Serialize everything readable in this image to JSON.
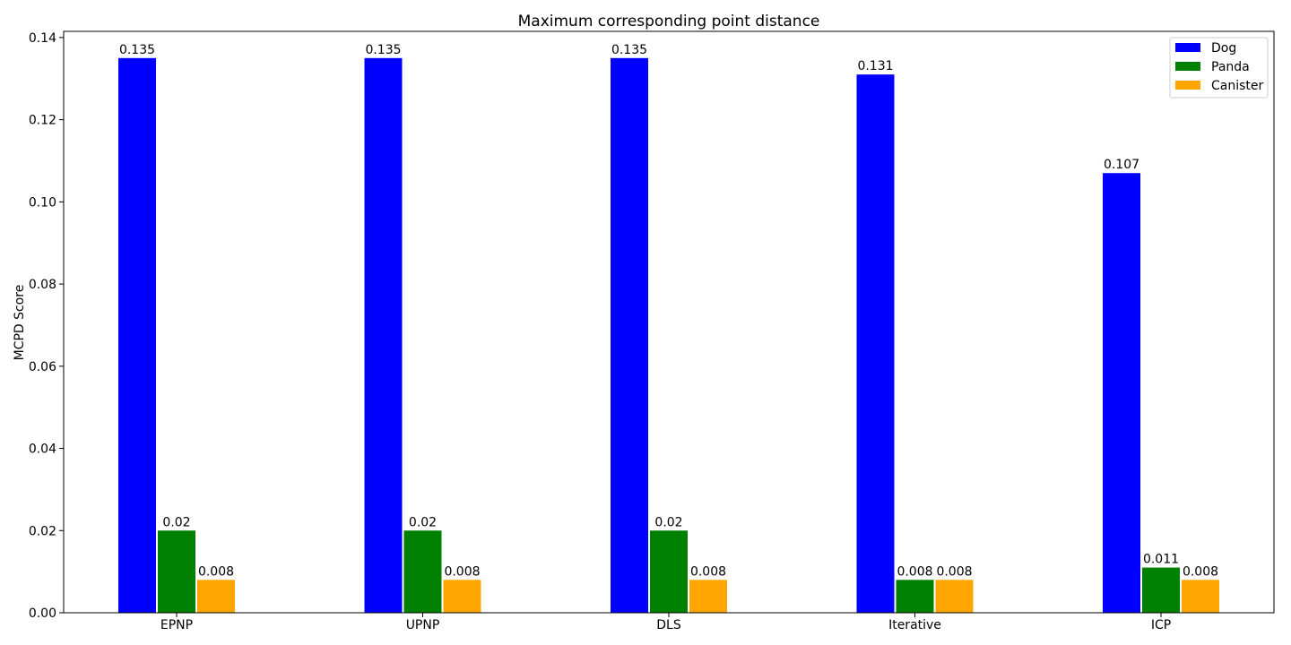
{
  "chart_data": {
    "type": "bar",
    "title": "Maximum corresponding point distance",
    "xlabel": "",
    "ylabel": "MCPD Score",
    "categories": [
      "EPNP",
      "UPNP",
      "DLS",
      "Iterative",
      "ICP"
    ],
    "series": [
      {
        "name": "Dog",
        "color": "#0000ff",
        "values": [
          0.135,
          0.135,
          0.135,
          0.131,
          0.107
        ],
        "labels": [
          "0.135",
          "0.135",
          "0.135",
          "0.131",
          "0.107"
        ]
      },
      {
        "name": "Panda",
        "color": "#008000",
        "values": [
          0.02,
          0.02,
          0.02,
          0.008,
          0.011
        ],
        "labels": [
          "0.02",
          "0.02",
          "0.02",
          "0.008",
          "0.011"
        ]
      },
      {
        "name": "Canister",
        "color": "#ffa500",
        "values": [
          0.008,
          0.008,
          0.008,
          0.008,
          0.008
        ],
        "labels": [
          "0.008",
          "0.008",
          "0.008",
          "0.008",
          "0.008"
        ]
      }
    ],
    "ylim": [
      0,
      0.1415
    ],
    "yticks": [
      "0.00",
      "0.02",
      "0.04",
      "0.06",
      "0.08",
      "0.10",
      "0.12",
      "0.14"
    ],
    "grid": false,
    "legend_position": "top-right"
  }
}
